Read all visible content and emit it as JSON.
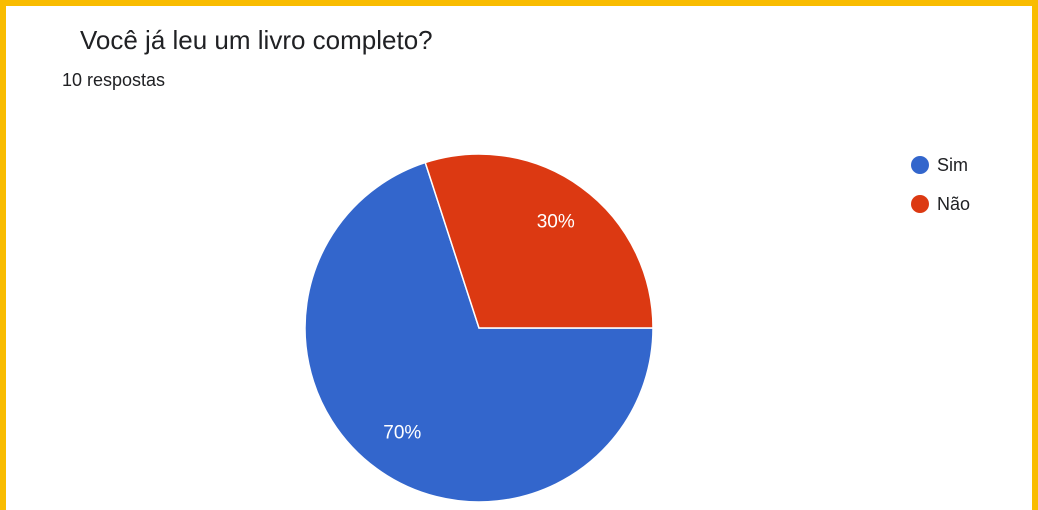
{
  "chart_data": {
    "type": "pie",
    "title": "Você já leu um livro completo?",
    "subtitle": "10 respostas",
    "categories": [
      "Sim",
      "Não"
    ],
    "values": [
      70,
      30
    ],
    "value_labels": [
      "70%",
      "30%"
    ],
    "colors": [
      "#3366cc",
      "#dc3912"
    ],
    "legend": "right"
  }
}
